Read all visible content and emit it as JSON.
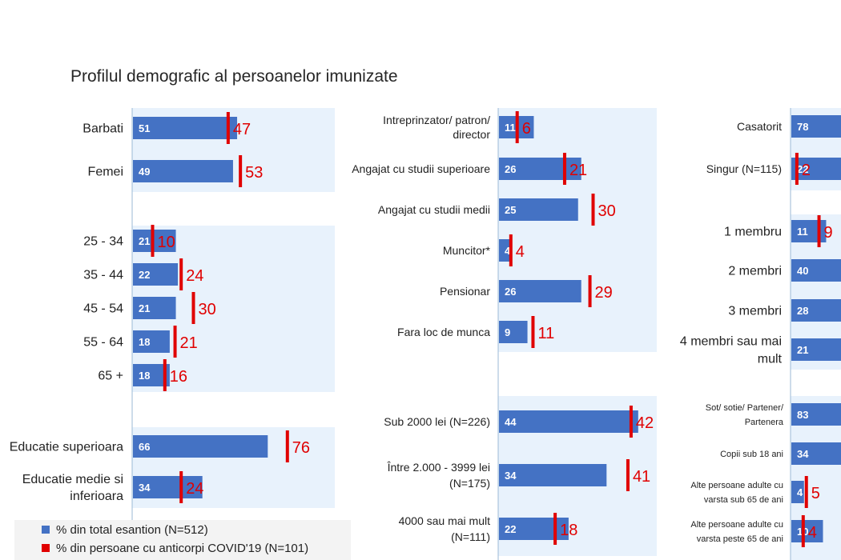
{
  "title": "Profilul demografic al persoanelor imunizate",
  "colors": {
    "bar": "#4472c4",
    "marker": "#e00000",
    "panel": "#e8f2fc",
    "axis": "#9bbad6"
  },
  "legend": {
    "total": "% din total esantion (N=512)",
    "covid": "% din persoane cu anticorpi COVID'19 (N=101)"
  },
  "chart_data": {
    "type": "bar",
    "orientation": "horizontal",
    "series": [
      {
        "name": "% din total esantion (N=512)"
      },
      {
        "name": "% din persoane cu anticorpi COVID'19 (N=101)"
      }
    ],
    "groups": [
      {
        "column": 0,
        "categories": [
          "Barbati",
          "Femei"
        ],
        "total": [
          51,
          49
        ],
        "covid": [
          47,
          53
        ]
      },
      {
        "column": 0,
        "categories": [
          "25 - 34",
          "35 - 44",
          "45 - 54",
          "55 - 64",
          "65 +"
        ],
        "total": [
          21,
          22,
          21,
          18,
          18
        ],
        "covid": [
          10,
          24,
          30,
          21,
          16
        ]
      },
      {
        "column": 0,
        "categories": [
          "Educatie superioara",
          "Educatie medie si inferioara"
        ],
        "total": [
          66,
          34
        ],
        "covid": [
          76,
          24
        ]
      },
      {
        "column": 1,
        "categories": [
          "Intreprinzator/ patron/ director",
          "Angajat cu studii superioare",
          "Angajat cu studii medii",
          "Muncitor*",
          "Pensionar",
          "Fara loc de munca"
        ],
        "total": [
          11,
          26,
          25,
          4,
          26,
          9
        ],
        "covid": [
          6,
          21,
          30,
          4,
          29,
          11
        ]
      },
      {
        "column": 1,
        "categories": [
          "Sub 2000 lei (N=226)",
          "Între 2.000 - 3999 lei (N=175)",
          "4000 sau mai mult (N=111)"
        ],
        "total": [
          44,
          34,
          22
        ],
        "covid": [
          42,
          41,
          18
        ]
      },
      {
        "column": 2,
        "categories": [
          "Casatorit",
          "Singur (N=115)"
        ],
        "total": [
          78,
          22
        ],
        "covid": [
          null,
          2
        ]
      },
      {
        "column": 2,
        "categories": [
          "1 membru",
          "2 membri",
          "3 membri",
          "4 membri sau mai mult"
        ],
        "total": [
          11,
          40,
          28,
          21
        ],
        "covid": [
          9,
          null,
          null,
          null
        ]
      },
      {
        "column": 2,
        "categories": [
          "Sot/ sotie/ Partener/ Partenera",
          "Copii sub 18 ani",
          "Alte persoane adulte cu varsta sub 65 de ani",
          "Alte persoane adulte cu varsta peste 65 de ani"
        ],
        "total": [
          83,
          34,
          4,
          10
        ],
        "covid": [
          null,
          null,
          5,
          4
        ]
      }
    ]
  }
}
